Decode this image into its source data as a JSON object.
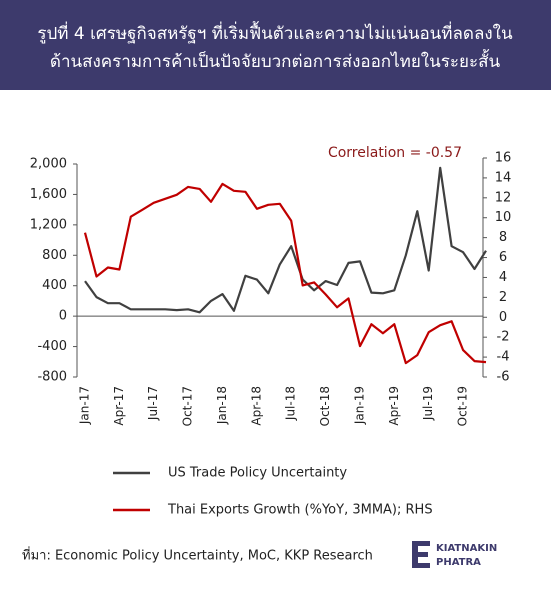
{
  "chart_data": {
    "type": "line",
    "title": [
      "รูปที่ 4  เศรษฐกิจสหรัฐฯ ที่เริ่มฟื้นตัวและความไม่แน่นอนที่ลดลงใน",
      "ด้านสงครามการค้าเป็นปัจจัยบวกต่อการส่งออกไทยในระยะสั้น"
    ],
    "annotation": "Correlation = -0.57",
    "categories": [
      "Jan-17",
      null,
      null,
      "Apr-17",
      null,
      null,
      "Jul-17",
      null,
      null,
      "Oct-17",
      null,
      null,
      "Jan-18",
      null,
      null,
      "Apr-18",
      null,
      null,
      "Jul-18",
      null,
      null,
      "Oct-18",
      null,
      null,
      "Jan-19",
      null,
      null,
      "Apr-19",
      null,
      null,
      "Jul-19",
      null,
      null,
      "Oct-19",
      null,
      null
    ],
    "series": [
      {
        "name": "US Trade Policy Uncertainty",
        "color": "#404040",
        "values": [
          460,
          250,
          170,
          170,
          90,
          90,
          90,
          90,
          80,
          90,
          50,
          200,
          290,
          70,
          530,
          480,
          300,
          680,
          920,
          480,
          340,
          460,
          410,
          700,
          720,
          310,
          300,
          340,
          800,
          1380,
          600,
          1950,
          920,
          840,
          620,
          860
        ]
      },
      {
        "name": "Thai Exports Growth (%YoY, 3MMA); RHS",
        "color": "#c00000",
        "axis": "y2",
        "values": [
          8.5,
          4.1,
          5.0,
          4.8,
          10.1,
          10.8,
          11.5,
          11.9,
          12.3,
          13.1,
          12.9,
          11.6,
          13.4,
          12.7,
          12.6,
          10.9,
          11.3,
          11.4,
          9.7,
          3.2,
          3.5,
          2.3,
          1.0,
          1.9,
          -2.9,
          -0.7,
          -1.6,
          -0.7,
          -4.6,
          -3.8,
          -1.5,
          -0.8,
          -0.4,
          -3.3,
          -4.4,
          -4.5
        ]
      }
    ],
    "ylim": [
      -800,
      2000
    ],
    "yticks": [
      -800,
      -400,
      0,
      400,
      800,
      {
        "value": 1200,
        "label": "1,200"
      },
      {
        "value": 1600,
        "label": "1,600"
      },
      {
        "value": 2000,
        "label": "2,000"
      }
    ],
    "y2lim": [
      -6,
      16
    ],
    "y2ticks": [
      -6,
      -4,
      -2,
      0,
      2,
      4,
      6,
      8,
      10,
      12,
      14,
      16
    ],
    "grid": false,
    "source": "ที่มา: Economic Policy Uncertainty, MoC, KKP Research",
    "logo": [
      "KIATNAKIN",
      "PHATRA"
    ]
  }
}
